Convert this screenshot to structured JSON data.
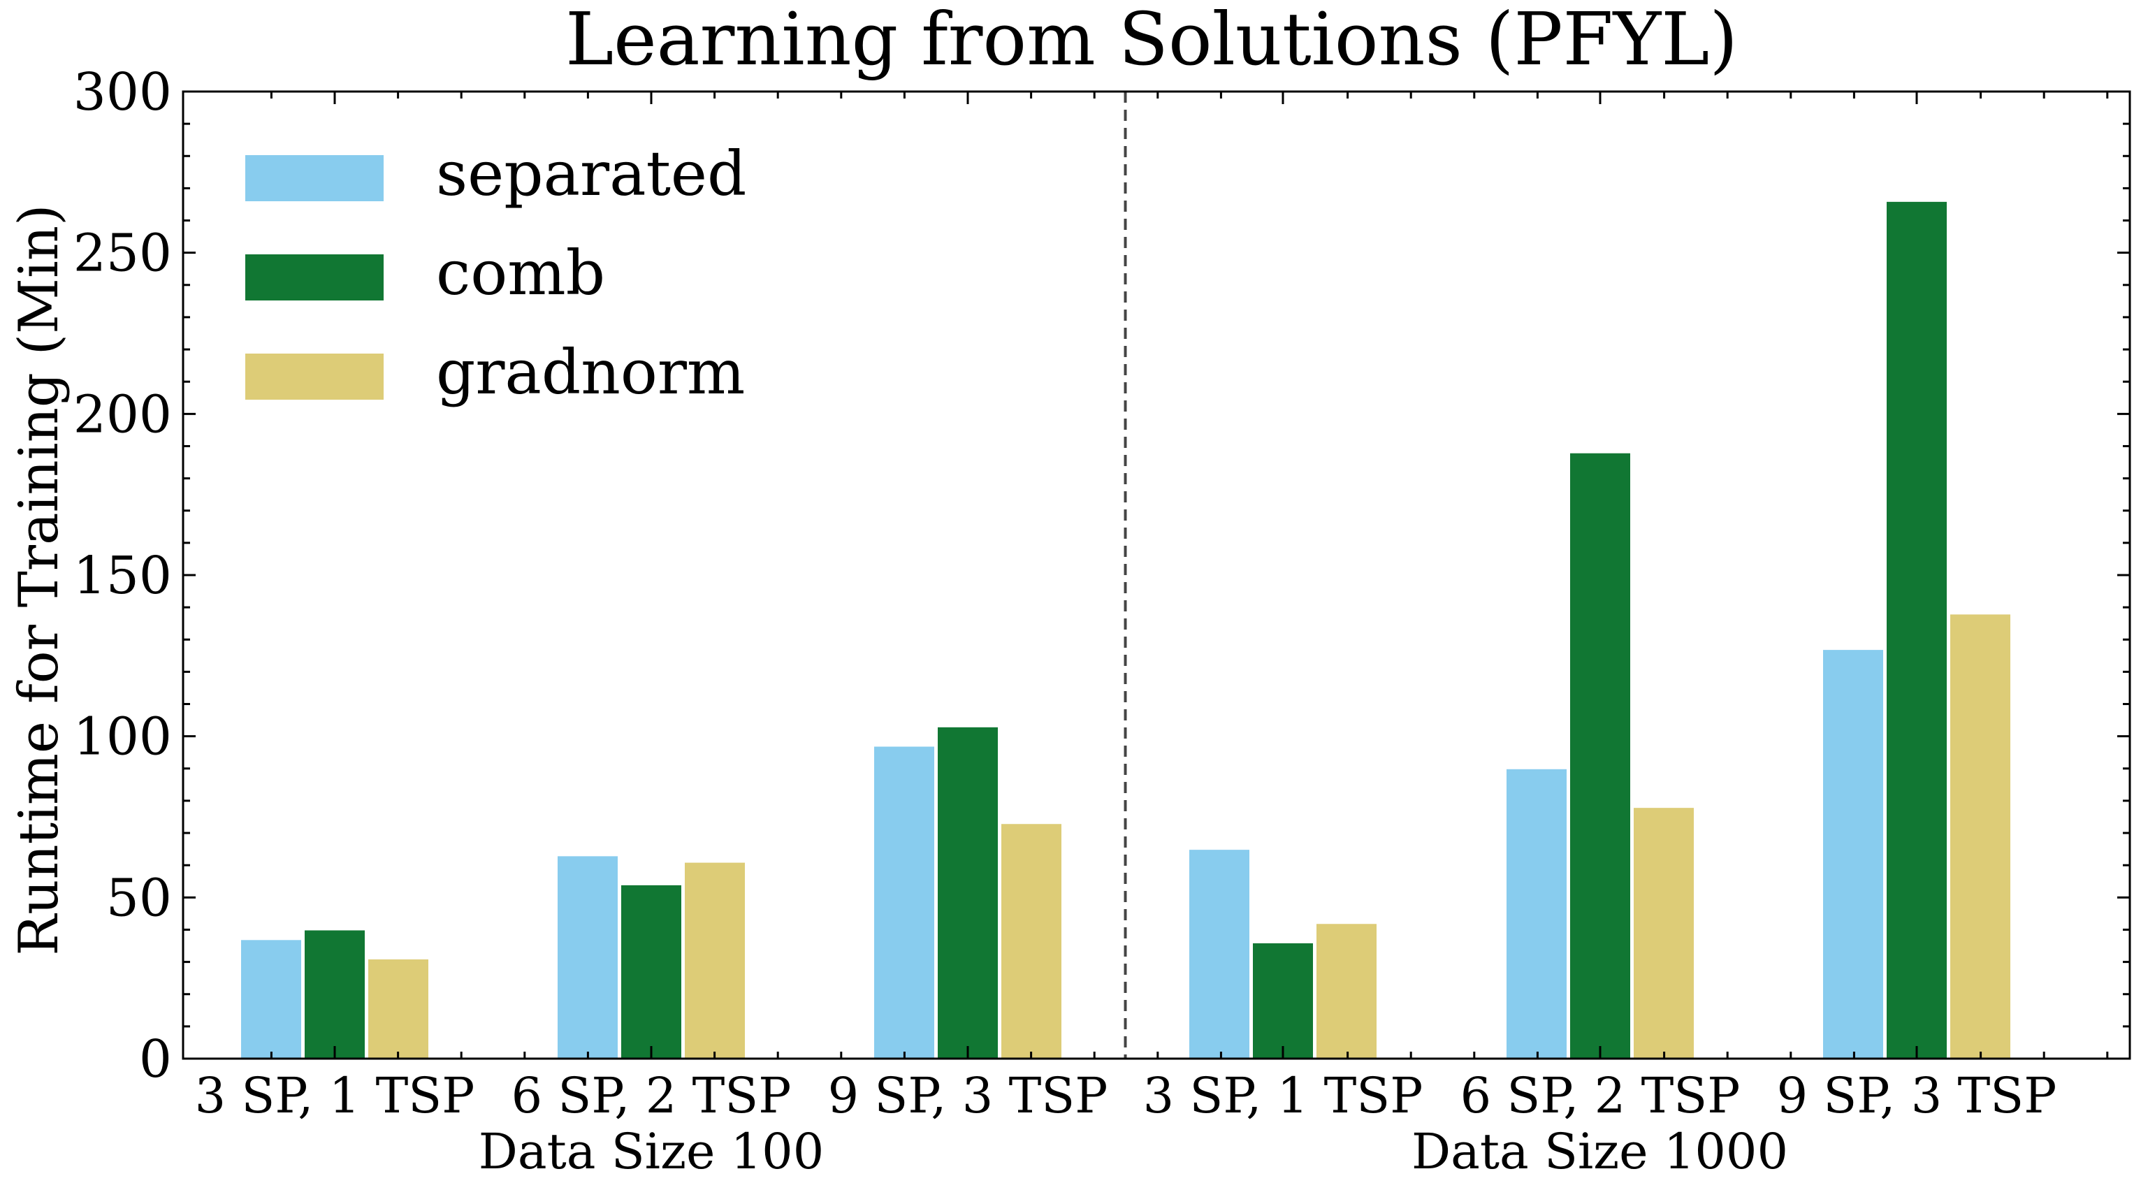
{
  "chart_data": {
    "type": "bar",
    "title": "Learning from Solutions (PFYL)",
    "xlabel": "",
    "ylabel": "Runtime for Training (Min)",
    "ylim": [
      0,
      300
    ],
    "yticks": [
      0,
      50,
      100,
      150,
      200,
      250,
      300
    ],
    "grid": false,
    "legend_position": "top-left",
    "categories": [
      "3 SP, 1 TSP",
      "6 SP, 2 TSP",
      "9 SP, 3 TSP",
      "3 SP, 1 TSP",
      "6 SP, 2 TSP",
      "9 SP, 3 TSP"
    ],
    "groups": [
      {
        "label": "Data Size 100",
        "category_indices": [
          0,
          1,
          2
        ]
      },
      {
        "label": "Data Size 1000",
        "category_indices": [
          3,
          4,
          5
        ]
      }
    ],
    "series": [
      {
        "name": "separated",
        "color": "#88CCEE",
        "values": [
          37,
          63,
          97,
          65,
          90,
          127
        ]
      },
      {
        "name": "comb",
        "color": "#117733",
        "values": [
          40,
          54,
          103,
          36,
          188,
          266
        ]
      },
      {
        "name": "gradnorm",
        "color": "#DDCC77",
        "values": [
          31,
          61,
          73,
          42,
          78,
          138
        ]
      }
    ]
  }
}
